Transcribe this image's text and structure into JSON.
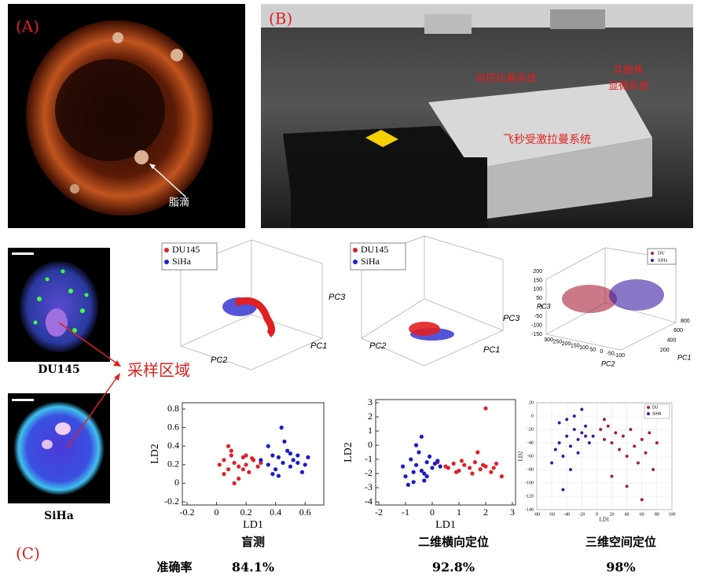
{
  "panels": {
    "a": {
      "label": "(A)",
      "annotation": "脂滴"
    },
    "b": {
      "label": "(B)",
      "annotations": [
        "自控拉曼系统",
        "共聚焦",
        "显微系统",
        "飞秒受激拉曼系统"
      ]
    },
    "c": {
      "label": "(C)",
      "cells": [
        "DU145",
        "SiHa"
      ],
      "region": "采样区域",
      "pca": [
        {
          "legend": [
            "DU145",
            "SiHa"
          ],
          "axes": [
            "PC1",
            "PC2",
            "PC3"
          ]
        },
        {
          "legend": [
            "DU145",
            "SiHa"
          ],
          "axes": [
            "PC1",
            "PC2",
            "PC3"
          ]
        },
        {
          "legend": [
            "DU",
            "SiHa"
          ],
          "axes": [
            "PC1",
            "PC2",
            "PC3"
          ],
          "pc3ticks": [
            200,
            150,
            100,
            50,
            0,
            -50,
            -100,
            -150
          ],
          "pc2ticks": [
            300,
            250,
            200,
            150,
            100,
            50,
            0,
            -50,
            -100
          ],
          "pc1ticks": [
            800,
            600,
            400,
            200
          ]
        }
      ],
      "methods": [
        "盲测",
        "二维横向定位",
        "三维空间定位"
      ],
      "metric": "准确率",
      "accuracy": [
        "84.1%",
        "92.8%",
        "98%"
      ]
    }
  },
  "chart_data": [
    {
      "type": "scatter",
      "xlabel": "LD1",
      "ylabel": "LD2",
      "xlim": [
        -0.2,
        0.7
      ],
      "ylim": [
        -0.2,
        0.8
      ],
      "xticks": [
        -0.2,
        0.0,
        0.2,
        0.4,
        0.6
      ],
      "yticks": [
        -0.2,
        0.0,
        0.2,
        0.4,
        0.6,
        0.8
      ],
      "series": [
        {
          "color": "#e0202a",
          "x": [
            0.02,
            0.05,
            0.08,
            0.1,
            0.12,
            0.15,
            0.18,
            0.2,
            0.22,
            0.25,
            0.05,
            0.1,
            0.15,
            0.2,
            0.28,
            0.3,
            0.12,
            0.08,
            0.18,
            0.24
          ],
          "y": [
            0.2,
            0.25,
            0.15,
            0.3,
            0.22,
            0.18,
            0.28,
            0.2,
            0.12,
            0.25,
            0.1,
            0.35,
            0.05,
            0.3,
            0.18,
            0.22,
            0.0,
            0.4,
            0.15,
            0.27
          ]
        },
        {
          "color": "#1a1ad0",
          "x": [
            0.3,
            0.35,
            0.38,
            0.4,
            0.42,
            0.45,
            0.48,
            0.5,
            0.52,
            0.55,
            0.58,
            0.6,
            0.35,
            0.42,
            0.46,
            0.5,
            0.55,
            0.44,
            0.62,
            0.38
          ],
          "y": [
            0.25,
            0.2,
            0.3,
            0.15,
            0.28,
            0.22,
            0.35,
            0.18,
            0.25,
            0.3,
            0.12,
            0.2,
            0.4,
            0.08,
            0.45,
            0.32,
            0.22,
            0.6,
            0.28,
            0.1
          ]
        }
      ]
    },
    {
      "type": "scatter",
      "xlabel": "LD1",
      "ylabel": "LD2",
      "xlim": [
        -2,
        3
      ],
      "ylim": [
        -4,
        3
      ],
      "xticks": [
        -2,
        -1,
        0,
        1,
        2,
        3
      ],
      "yticks": [
        -4,
        -3,
        -2,
        -1,
        0,
        1,
        2,
        3
      ],
      "series": [
        {
          "color": "#e0202a",
          "x": [
            0.2,
            0.5,
            0.8,
            1.0,
            1.2,
            1.4,
            1.6,
            1.8,
            2.0,
            2.2,
            2.4,
            2.6,
            0.6,
            1.1,
            1.5,
            1.9,
            2.3,
            0.9,
            1.7,
            2.0
          ],
          "y": [
            -1.2,
            -1.5,
            -1.3,
            -1.8,
            -1.4,
            -1.6,
            -1.2,
            -1.7,
            -1.5,
            -1.9,
            -1.3,
            -2.2,
            -1.6,
            -1.1,
            -2.0,
            -1.4,
            -1.6,
            -1.9,
            -0.5,
            2.6
          ]
        },
        {
          "color": "#1a1ad0",
          "x": [
            -1.1,
            -1.0,
            -0.8,
            -0.7,
            -0.6,
            -0.5,
            -0.4,
            -0.3,
            -0.2,
            -0.1,
            0.0,
            0.1,
            0.2,
            0.3,
            -0.9,
            -0.6,
            -0.3,
            -0.7,
            -0.4,
            -0.2
          ],
          "y": [
            -1.5,
            -2.2,
            -1.0,
            -2.6,
            -1.4,
            -0.5,
            -1.8,
            -2.0,
            -1.2,
            -0.8,
            -1.6,
            -1.3,
            -1.1,
            -1.5,
            -2.8,
            0.0,
            -2.5,
            -1.9,
            0.6,
            -2.2
          ]
        }
      ]
    },
    {
      "type": "scatter",
      "xlabel": "LD1",
      "ylabel": "LD2",
      "grid": true,
      "xlim": [
        -80,
        100
      ],
      "ylim": [
        -140,
        20
      ],
      "xticks": [
        -80,
        -60,
        -40,
        -20,
        0,
        20,
        40,
        60,
        80,
        100
      ],
      "yticks": [
        -140,
        -120,
        -100,
        -80,
        -60,
        -40,
        -20,
        0,
        20
      ],
      "series": [
        {
          "name": "DU",
          "color": "#a8203a",
          "x": [
            5,
            10,
            15,
            20,
            25,
            30,
            35,
            40,
            45,
            50,
            55,
            60,
            65,
            70,
            75,
            80,
            20,
            40,
            60,
            10
          ],
          "y": [
            -20,
            -35,
            -15,
            -40,
            -25,
            -50,
            -30,
            -60,
            -20,
            -45,
            -70,
            -35,
            -55,
            -25,
            -80,
            -40,
            -90,
            -105,
            -125,
            -5
          ]
        },
        {
          "name": "SiHA",
          "color": "#3a1aa0",
          "x": [
            -60,
            -55,
            -50,
            -45,
            -40,
            -35,
            -30,
            -25,
            -20,
            -15,
            -10,
            -5,
            -50,
            -40,
            -30,
            -20,
            -45,
            -35,
            -25,
            -15
          ],
          "y": [
            -70,
            -50,
            -40,
            -60,
            -30,
            -45,
            -20,
            -35,
            -25,
            -15,
            -40,
            -30,
            -10,
            -5,
            0,
            10,
            -110,
            -80,
            -55,
            -30
          ]
        }
      ]
    }
  ]
}
